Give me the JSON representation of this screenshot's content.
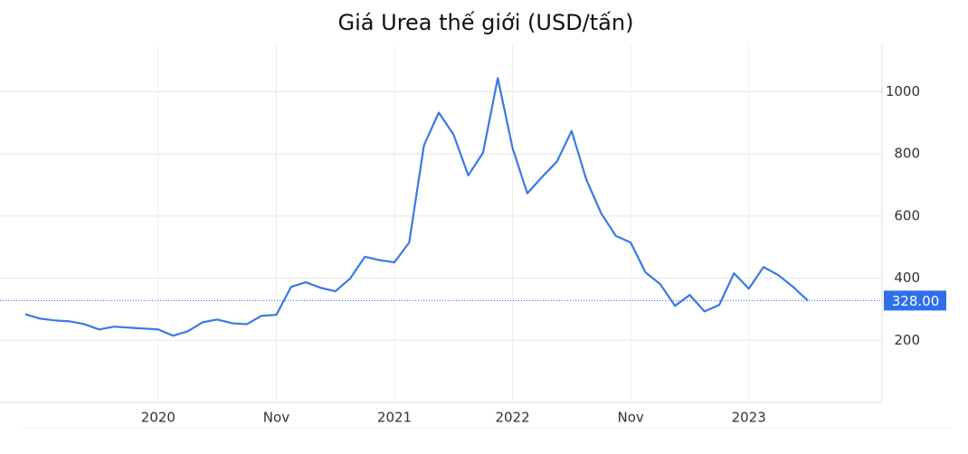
{
  "chart_data": {
    "type": "line",
    "title": "Giá Urea thế giới (USD/tấn)",
    "categories": [
      null,
      null,
      null,
      null,
      null,
      null,
      null,
      null,
      null,
      "2020",
      null,
      null,
      null,
      null,
      null,
      null,
      null,
      "Nov",
      null,
      null,
      null,
      null,
      null,
      null,
      null,
      "2021",
      null,
      null,
      null,
      null,
      null,
      null,
      null,
      "2022",
      null,
      null,
      null,
      null,
      null,
      null,
      null,
      "Nov",
      null,
      null,
      null,
      null,
      null,
      null,
      null,
      "2023",
      null,
      null,
      null,
      null
    ],
    "series": [
      {
        "color": "#3b78e7",
        "values": [
          284,
          270,
          264,
          261,
          252,
          235,
          244,
          241,
          238,
          235,
          215,
          229,
          258,
          267,
          255,
          252,
          279,
          282,
          372,
          387,
          369,
          358,
          399,
          469,
          458,
          451,
          515,
          828,
          933,
          863,
          731,
          804,
          1044,
          819,
          673,
          726,
          775,
          874,
          717,
          609,
          536,
          515,
          419,
          381,
          311,
          346,
          293,
          314,
          416,
          366,
          436,
          410,
          372,
          328
        ]
      }
    ],
    "ylim": [
      0,
      1150
    ],
    "yticks": [
      200,
      400,
      600,
      800,
      1000
    ],
    "grid": true,
    "annotations": [
      {
        "value": 328,
        "label": "328.00",
        "color": "#2f6fed"
      }
    ]
  }
}
